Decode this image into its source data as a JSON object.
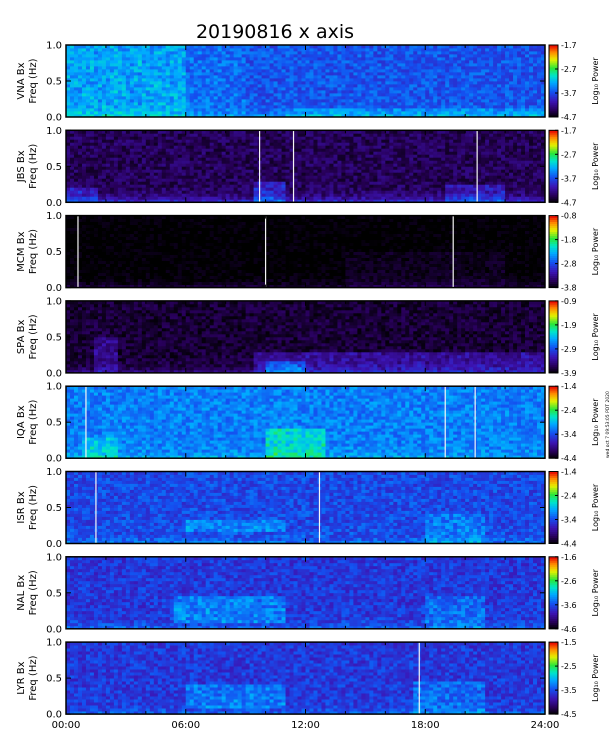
{
  "chart_data": {
    "type": "heatmap",
    "title": "20190816  x axis",
    "x_tick_labels": [
      "00:00",
      "06:00",
      "12:00",
      "18:00",
      "24:00"
    ],
    "x_range_hours": [
      0,
      24
    ],
    "y_range_hz": [
      0,
      1
    ],
    "y_tick_labels": [
      "0.0",
      "0.5",
      "1.0"
    ],
    "colorbar_label": "Log₁₀ Power",
    "side_note": "wed oct 7 09:53:05 PDT 2020",
    "panels": [
      {
        "label_top": "VNA Bx",
        "label_bottom": "Freq (Hz)",
        "cbar_ticks": [
          "-1.7",
          "-2.7",
          "-3.7",
          "-4.7"
        ],
        "cbar_range": [
          -4.7,
          -1.7
        ],
        "base_level": 0.35,
        "noise": 0.07,
        "lowfreq_boost": 0.12,
        "features": [
          {
            "t0": 0.0,
            "t1": 6.0,
            "f0": 0.0,
            "f1": 1.0,
            "amp": 0.15
          },
          {
            "t0": 6.0,
            "t1": 9.0,
            "f0": 0.0,
            "f1": 1.0,
            "amp": 0.05
          },
          {
            "t0": 11.0,
            "t1": 24.0,
            "f0": 0.0,
            "f1": 0.12,
            "amp": 0.08
          }
        ],
        "stripes": []
      },
      {
        "label_top": "JBS Bx",
        "label_bottom": "Freq (Hz)",
        "cbar_ticks": [
          "-1.7",
          "-2.7",
          "-3.7",
          "-4.7"
        ],
        "cbar_range": [
          -4.7,
          -1.7
        ],
        "base_level": 0.1,
        "noise": 0.06,
        "lowfreq_boost": 0.22,
        "features": [
          {
            "t0": 0.0,
            "t1": 1.5,
            "f0": 0.0,
            "f1": 0.2,
            "amp": 0.15
          },
          {
            "t0": 9.5,
            "t1": 11.0,
            "f0": 0.0,
            "f1": 0.3,
            "amp": 0.18
          },
          {
            "t0": 19.0,
            "t1": 22.0,
            "f0": 0.0,
            "f1": 0.25,
            "amp": 0.15
          }
        ],
        "stripes": [
          9.7,
          11.4,
          20.6
        ]
      },
      {
        "label_top": "MCM Bx",
        "label_bottom": "Freq (Hz)",
        "cbar_ticks": [
          "-0.8",
          "-1.8",
          "-2.8",
          "-3.8"
        ],
        "cbar_range": [
          -3.8,
          -0.8
        ],
        "base_level": 0.0,
        "noise": 0.03,
        "lowfreq_boost": 0.08,
        "features": [
          {
            "t0": 14.0,
            "t1": 22.0,
            "f0": 0.0,
            "f1": 0.5,
            "amp": 0.04
          }
        ],
        "stripes": [
          0.6,
          10.0,
          19.4
        ]
      },
      {
        "label_top": "SPA Bx",
        "label_bottom": "Freq (Hz)",
        "cbar_ticks": [
          "-0.9",
          "-1.9",
          "-2.9",
          "-3.9"
        ],
        "cbar_range": [
          -3.9,
          -0.9
        ],
        "base_level": 0.06,
        "noise": 0.05,
        "lowfreq_boost": 0.12,
        "features": [
          {
            "t0": 9.5,
            "t1": 24.0,
            "f0": 0.0,
            "f1": 0.3,
            "amp": 0.15
          },
          {
            "t0": 10.0,
            "t1": 12.0,
            "f0": 0.0,
            "f1": 0.18,
            "amp": 0.22
          },
          {
            "t0": 1.5,
            "t1": 2.5,
            "f0": 0.0,
            "f1": 0.5,
            "amp": 0.12
          }
        ],
        "stripes": []
      },
      {
        "label_top": "IQA Bx",
        "label_bottom": "Freq (Hz)",
        "cbar_ticks": [
          "-1.4",
          "-2.4",
          "-3.4",
          "-4.4"
        ],
        "cbar_range": [
          -4.4,
          -1.4
        ],
        "base_level": 0.42,
        "noise": 0.07,
        "lowfreq_boost": 0.08,
        "features": [
          {
            "t0": 10.0,
            "t1": 13.0,
            "f0": 0.0,
            "f1": 0.4,
            "amp": 0.18
          },
          {
            "t0": 0.8,
            "t1": 2.5,
            "f0": 0.0,
            "f1": 0.3,
            "amp": 0.12
          }
        ],
        "stripes": [
          1.0,
          19.0,
          20.5
        ]
      },
      {
        "label_top": "ISR Bx",
        "label_bottom": "Freq (Hz)",
        "cbar_ticks": [
          "-1.4",
          "-2.4",
          "-3.4",
          "-4.4"
        ],
        "cbar_range": [
          -4.4,
          -1.4
        ],
        "base_level": 0.33,
        "noise": 0.07,
        "lowfreq_boost": 0.1,
        "features": [
          {
            "t0": 6.0,
            "t1": 11.0,
            "f0": 0.15,
            "f1": 0.35,
            "amp": 0.12
          },
          {
            "t0": 18.0,
            "t1": 21.0,
            "f0": 0.0,
            "f1": 0.4,
            "amp": 0.1
          }
        ],
        "stripes": [
          1.5,
          12.7
        ]
      },
      {
        "label_top": "NAL Bx",
        "label_bottom": "Freq (Hz)",
        "cbar_ticks": [
          "-1.6",
          "-2.6",
          "-3.6",
          "-4.6"
        ],
        "cbar_range": [
          -4.6,
          -1.6
        ],
        "base_level": 0.3,
        "noise": 0.07,
        "lowfreq_boost": 0.1,
        "features": [
          {
            "t0": 5.5,
            "t1": 11.0,
            "f0": 0.1,
            "f1": 0.45,
            "amp": 0.15
          },
          {
            "t0": 18.0,
            "t1": 21.0,
            "f0": 0.0,
            "f1": 0.45,
            "amp": 0.1
          }
        ],
        "stripes": []
      },
      {
        "label_top": "LYR Bx",
        "label_bottom": "Freq (Hz)",
        "cbar_ticks": [
          "-1.5",
          "-2.5",
          "-3.5",
          "-4.5"
        ],
        "cbar_range": [
          -4.5,
          -1.5
        ],
        "base_level": 0.3,
        "noise": 0.07,
        "lowfreq_boost": 0.1,
        "features": [
          {
            "t0": 6.0,
            "t1": 11.0,
            "f0": 0.1,
            "f1": 0.4,
            "amp": 0.13
          },
          {
            "t0": 17.5,
            "t1": 21.0,
            "f0": 0.0,
            "f1": 0.45,
            "amp": 0.1
          }
        ],
        "stripes": [
          17.7
        ]
      }
    ]
  }
}
